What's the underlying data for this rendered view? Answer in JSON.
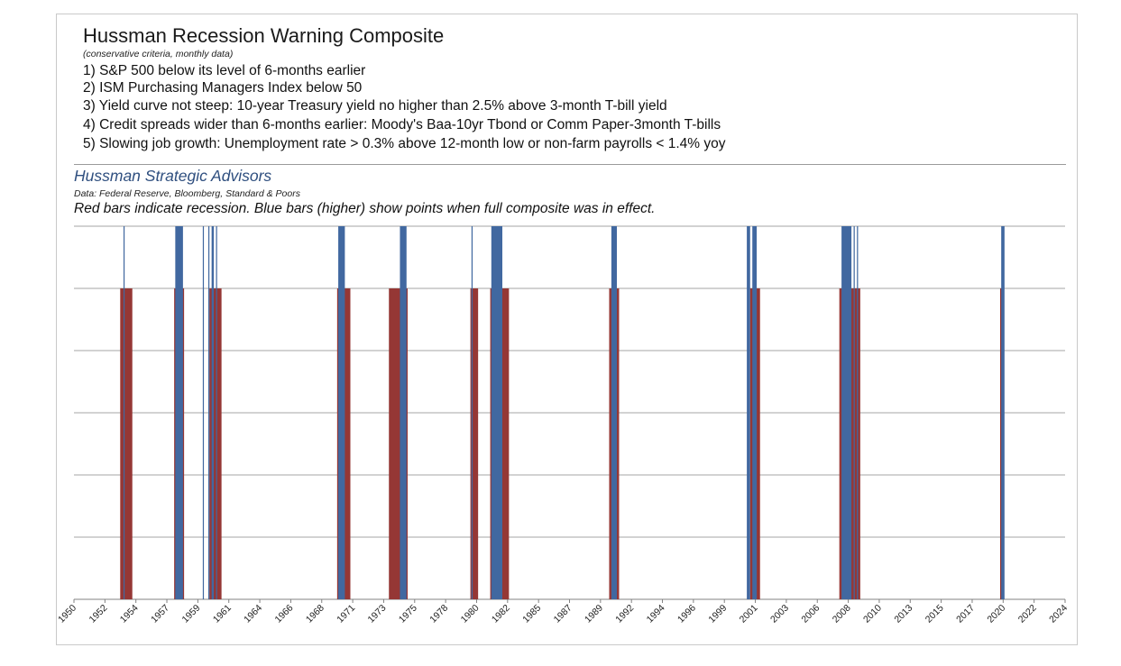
{
  "header": {
    "title": "Hussman Recession Warning Composite",
    "subtitle": "(conservative criteria, monthly data)",
    "criteria": [
      "1) S&P 500 below its level of 6-months earlier",
      "2) ISM Purchasing Managers Index below 50",
      "3) Yield curve not steep: 10-year Treasury yield no higher than 2.5% above 3-month T-bill yield",
      "4) Credit spreads wider than 6-months earlier: Moody's Baa-10yr Tbond or Comm Paper-3month T-bills",
      "5) Slowing job growth: Unemployment rate > 0.3% above 12-month low or non-farm payrolls < 1.4% yoy"
    ]
  },
  "branding": {
    "organization": "Hussman Strategic Advisors",
    "source": "Data: Federal Reserve, Bloomberg, Standard & Poors",
    "note": "Red bars indicate recession. Blue bars (higher) show points when full composite was in effect."
  },
  "colors": {
    "recession": "#953735",
    "composite": "#4168a0",
    "gridline": "#a6a6a6",
    "axis": "#808080"
  },
  "chart_data": {
    "type": "bar",
    "xlim": [
      "1950-01",
      "2024-12"
    ],
    "ylim": [
      0,
      1.2
    ],
    "grid": true,
    "legend": "none",
    "xticks": [
      "1950",
      "1952",
      "1954",
      "1957",
      "1959",
      "1961",
      "1964",
      "1966",
      "1968",
      "1971",
      "1973",
      "1975",
      "1978",
      "1980",
      "1982",
      "1985",
      "1987",
      "1989",
      "1992",
      "1994",
      "1996",
      "1999",
      "2001",
      "2003",
      "2006",
      "2008",
      "2010",
      "2013",
      "2015",
      "2017",
      "2020",
      "2022",
      "2024"
    ],
    "series": [
      {
        "id": "recession",
        "height": 1.0,
        "periods": [
          [
            "1953-07",
            "1954-05"
          ],
          [
            "1957-08",
            "1958-04"
          ],
          [
            "1960-04",
            "1961-02"
          ],
          [
            "1969-12",
            "1970-11"
          ],
          [
            "1973-11",
            "1975-03"
          ],
          [
            "1980-01",
            "1980-07"
          ],
          [
            "1981-07",
            "1982-11"
          ],
          [
            "1990-07",
            "1991-03"
          ],
          [
            "2001-03",
            "2001-11"
          ],
          [
            "2007-12",
            "2009-06"
          ],
          [
            "2020-02",
            "2020-04"
          ]
        ]
      },
      {
        "id": "composite",
        "height": 1.2,
        "periods": [
          [
            "1953-10",
            "1953-10"
          ],
          [
            "1957-09",
            "1958-03"
          ],
          [
            "1959-10",
            "1959-10"
          ],
          [
            "1960-03",
            "1960-03"
          ],
          [
            "1960-06",
            "1960-07"
          ],
          [
            "1960-10",
            "1960-10"
          ],
          [
            "1970-01",
            "1970-06"
          ],
          [
            "1974-09",
            "1975-02"
          ],
          [
            "1980-02",
            "1980-02"
          ],
          [
            "1981-08",
            "1982-05"
          ],
          [
            "1990-09",
            "1991-01"
          ],
          [
            "2000-12",
            "2001-02"
          ],
          [
            "2001-05",
            "2001-08"
          ],
          [
            "2008-02",
            "2008-10"
          ],
          [
            "2009-01",
            "2009-01"
          ],
          [
            "2009-04",
            "2009-04"
          ],
          [
            "2020-03",
            "2020-05"
          ]
        ]
      }
    ]
  }
}
